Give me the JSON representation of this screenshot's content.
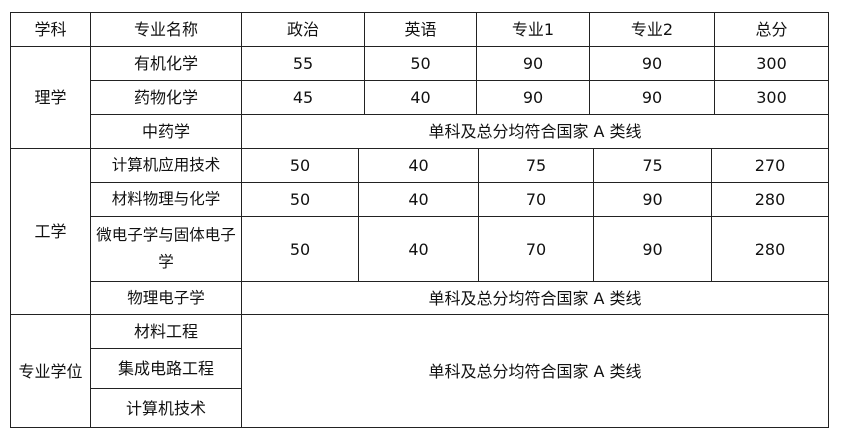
{
  "header": [
    "学科",
    "专业名称",
    "政治",
    "英语",
    "专业1",
    "专业2",
    "总分"
  ],
  "groups": {
    "science": {
      "label": "理学",
      "rows": [
        {
          "major": "有机化学",
          "scores": [
            "55",
            "50",
            "90",
            "90",
            "300"
          ]
        },
        {
          "major": "药物化学",
          "scores": [
            "45",
            "40",
            "90",
            "90",
            "300"
          ]
        },
        {
          "major": "中药学",
          "note": "单科及总分均符合国家 A 类线"
        }
      ]
    },
    "engineering": {
      "label": "工学",
      "rows": [
        {
          "major": "计算机应用技术",
          "scores": [
            "50",
            "40",
            "75",
            "75",
            "270"
          ]
        },
        {
          "major": "材料物理与化学",
          "scores": [
            "50",
            "40",
            "70",
            "90",
            "280"
          ]
        },
        {
          "major": "微电子学与固体电子学",
          "scores": [
            "50",
            "40",
            "70",
            "90",
            "280"
          ]
        },
        {
          "major": "物理电子学",
          "note": "单科及总分均符合国家 A 类线"
        }
      ]
    },
    "professional": {
      "label": "专业学位",
      "rows": [
        {
          "major": "材料工程"
        },
        {
          "major": "集成电路工程"
        },
        {
          "major": "计算机技术"
        }
      ],
      "note": "单科及总分均符合国家 A 类线"
    }
  }
}
